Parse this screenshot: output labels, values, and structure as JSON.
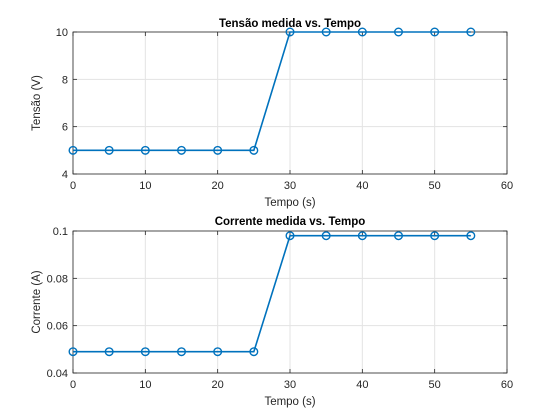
{
  "chart_data": [
    {
      "type": "line",
      "title": "Tensão medida vs. Tempo",
      "xlabel": "Tempo (s)",
      "ylabel": "Tensão (V)",
      "xlim": [
        0,
        60
      ],
      "ylim": [
        4,
        10
      ],
      "xticks": [
        0,
        10,
        20,
        30,
        40,
        50,
        60
      ],
      "yticks": [
        4,
        6,
        8,
        10
      ],
      "grid": true,
      "color": "#0072BD",
      "marker": "circle",
      "x": [
        0,
        5,
        10,
        15,
        20,
        25,
        30,
        35,
        40,
        45,
        50,
        55
      ],
      "y": [
        5,
        5,
        5,
        5,
        5,
        5,
        10,
        10,
        10,
        10,
        10,
        10
      ]
    },
    {
      "type": "line",
      "title": "Corrente medida vs. Tempo",
      "xlabel": "Tempo (s)",
      "ylabel": "Corrente (A)",
      "xlim": [
        0,
        60
      ],
      "ylim": [
        0.04,
        0.1
      ],
      "xticks": [
        0,
        10,
        20,
        30,
        40,
        50,
        60
      ],
      "yticks": [
        0.04,
        0.06,
        0.08,
        0.1
      ],
      "ytick_labels": [
        "0.04",
        "0.06",
        "0.08",
        "0.1"
      ],
      "grid": true,
      "color": "#0072BD",
      "marker": "circle",
      "x": [
        0,
        5,
        10,
        15,
        20,
        25,
        30,
        35,
        40,
        45,
        50,
        55
      ],
      "y": [
        0.049,
        0.049,
        0.049,
        0.049,
        0.049,
        0.049,
        0.098,
        0.098,
        0.098,
        0.098,
        0.098,
        0.098
      ]
    }
  ]
}
